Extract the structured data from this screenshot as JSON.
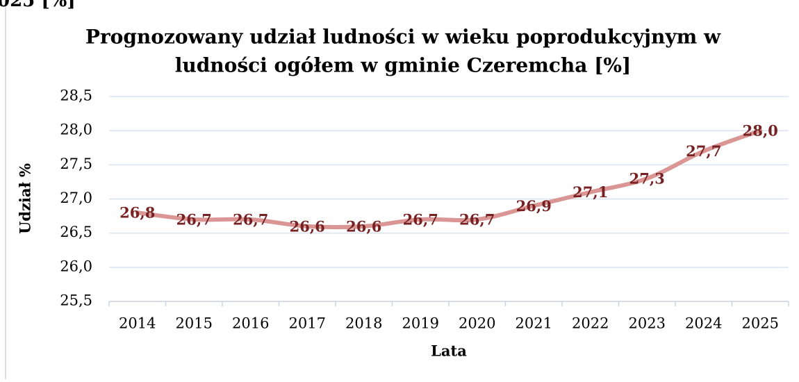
{
  "caption": "025 [%]",
  "chart_data": {
    "type": "line",
    "title": "Prognozowany udział ludności w wieku poprodukcyjnym w",
    "title_line2": "ludności ogółem w gminie Czeremcha [%]",
    "x_label": "Lata",
    "y_label": "Udział %",
    "categories": [
      "2014",
      "2015",
      "2016",
      "2017",
      "2018",
      "2019",
      "2020",
      "2021",
      "2022",
      "2023",
      "2024",
      "2025"
    ],
    "values": [
      26.8,
      26.7,
      26.7,
      26.6,
      26.6,
      26.7,
      26.7,
      26.9,
      27.1,
      27.3,
      27.7,
      28.0
    ],
    "value_labels": [
      "26,8",
      "26,7",
      "26,7",
      "26,6",
      "26,6",
      "26,7",
      "26,7",
      "26,9",
      "27,1",
      "27,3",
      "27,7",
      "28,0"
    ],
    "color": "#d99694",
    "label_color": "#772222",
    "grid": true,
    "ylim": [
      25.5,
      28.5
    ],
    "yticks": [
      {
        "value": 25.5,
        "label": "25,5"
      },
      {
        "value": 26,
        "label": "26,0"
      },
      {
        "value": 26.5,
        "label": "26,5"
      },
      {
        "value": 27,
        "label": "27,0"
      },
      {
        "value": 27.5,
        "label": "27,5"
      },
      {
        "value": 28,
        "label": "28,0"
      },
      {
        "value": 28.5,
        "label": "28,5"
      }
    ]
  }
}
